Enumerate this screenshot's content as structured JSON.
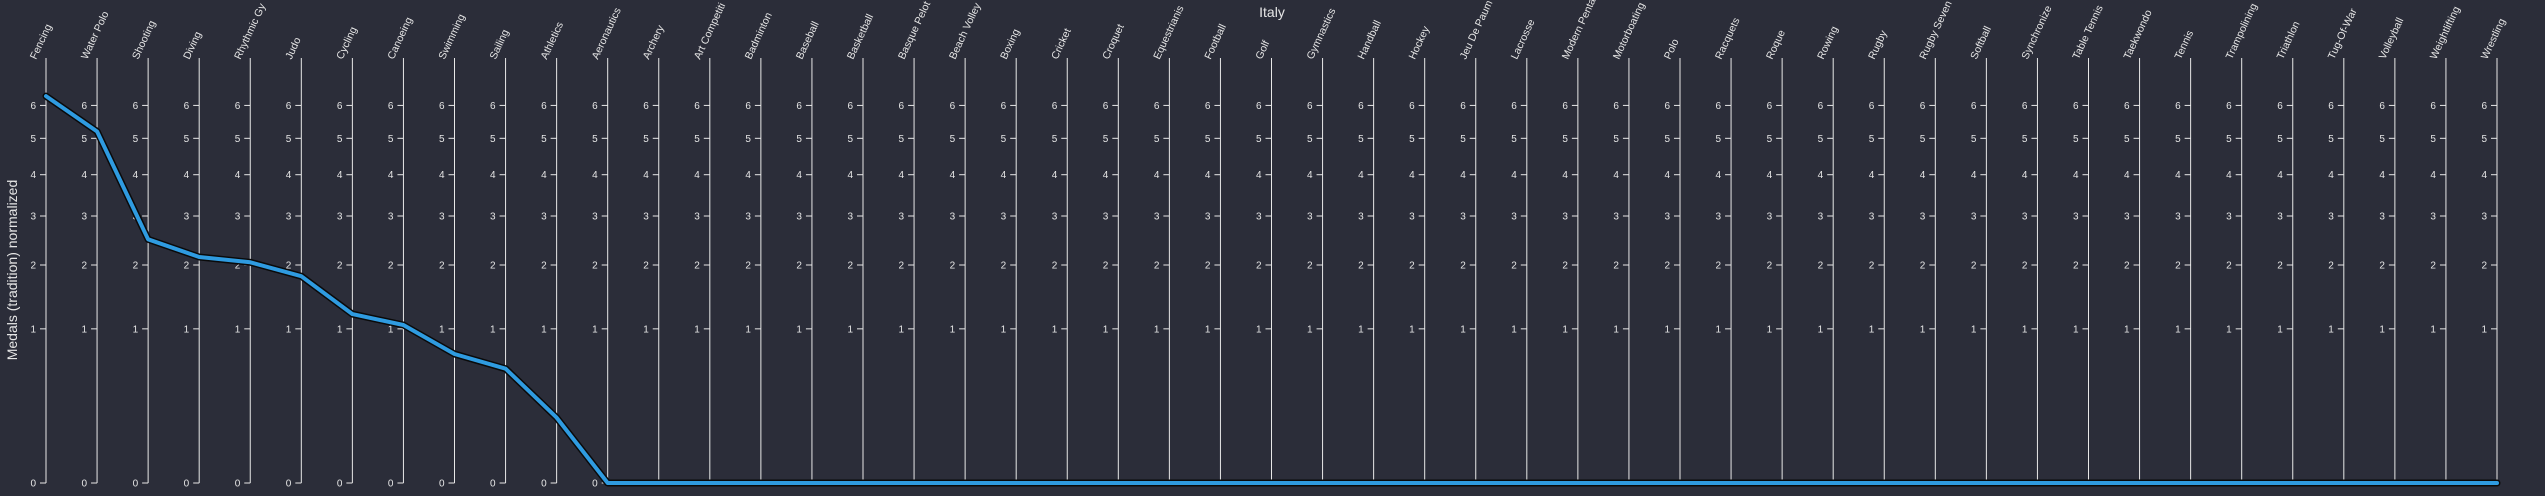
{
  "chart_data": {
    "type": "line",
    "title": "Italy",
    "ylabel": "Medals (tradition) normalized",
    "ylim": [
      0,
      6.5
    ],
    "y_scale": "sqrt",
    "y_ticks": [
      0,
      1,
      2,
      3,
      4,
      5,
      6
    ],
    "series_color": "#2f9be0",
    "dimensions": [
      "Fencing",
      "Water Polo",
      "Shooting",
      "Diving",
      "Rhythmic Gy",
      "Judo",
      "Cycling",
      "Canoeing",
      "Swimming",
      "Sailing",
      "Athletics",
      "Aeronautics",
      "Archery",
      "Art Competiti",
      "Badminton",
      "Baseball",
      "Basketball",
      "Basque Pelot",
      "Beach Volley",
      "Boxing",
      "Cricket",
      "Croquet",
      "Equestrianis",
      "Football",
      "Golf",
      "Gymnastics",
      "Handball",
      "Hockey",
      "Jeu De Paum",
      "Lacrosse",
      "Modern Penta",
      "Motorboating",
      "Polo",
      "Racquets",
      "Roque",
      "Rowing",
      "Rugby",
      "Rugby Seven",
      "Softball",
      "Synchronize",
      "Table Tennis",
      "Taekwondo",
      "Tennis",
      "Trampolining",
      "Triathlon",
      "Tug-Of-War",
      "Volleyball",
      "Weightlifting",
      "Wrestling"
    ],
    "series": [
      {
        "values": [
          6.3,
          5.2,
          2.5,
          2.15,
          2.05,
          1.8,
          1.2,
          1.05,
          0.7,
          0.55,
          0.18,
          0,
          0,
          0,
          0,
          0,
          0,
          0,
          0,
          0,
          0,
          0,
          0,
          0,
          0,
          0,
          0,
          0,
          0,
          0,
          0,
          0,
          0,
          0,
          0,
          0,
          0,
          0,
          0,
          0,
          0,
          0,
          0,
          0,
          0,
          0,
          0,
          0,
          0
        ]
      }
    ]
  }
}
